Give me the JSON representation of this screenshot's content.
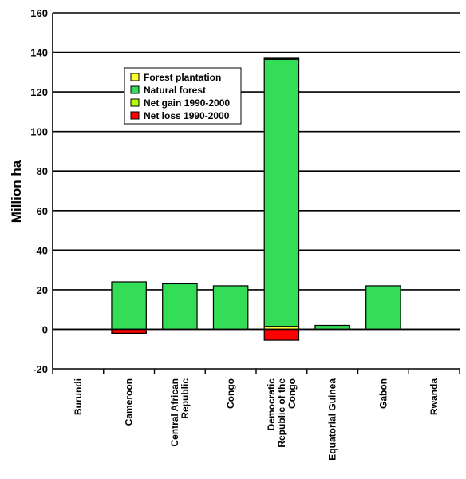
{
  "chart_data": {
    "type": "bar",
    "stacked": true,
    "ylabel": "Million ha",
    "xlabel": "",
    "ylim": [
      -20,
      160
    ],
    "yticks": [
      -20,
      0,
      20,
      40,
      60,
      80,
      100,
      120,
      140,
      160
    ],
    "grid": true,
    "legend_position": "top-left",
    "categories": [
      [
        "Burundi"
      ],
      [
        "Cameroon"
      ],
      [
        "Central African",
        "Republic"
      ],
      [
        "Congo"
      ],
      [
        "Democratic",
        "Republic of the",
        "Congo"
      ],
      [
        "Equatorial Guinea"
      ],
      [
        "Gabon"
      ],
      [
        "Rwanda"
      ]
    ],
    "series": [
      {
        "name": "Forest plantation",
        "color": "#ffff33",
        "values": [
          0,
          0,
          0,
          0,
          1.5,
          0,
          0,
          0
        ]
      },
      {
        "name": "Natural forest",
        "color": "#33dd55",
        "values": [
          0,
          24,
          23,
          22,
          135,
          2,
          22,
          0
        ]
      },
      {
        "name": "Net gain 1990-2000",
        "color": "#b8ff00",
        "values": [
          0,
          0,
          0,
          0,
          0.5,
          0,
          0,
          0
        ]
      },
      {
        "name": "Net loss 1990-2000",
        "color": "#ff0000",
        "values": [
          0,
          -2,
          0,
          0,
          -5.5,
          0,
          0,
          0
        ]
      }
    ]
  }
}
